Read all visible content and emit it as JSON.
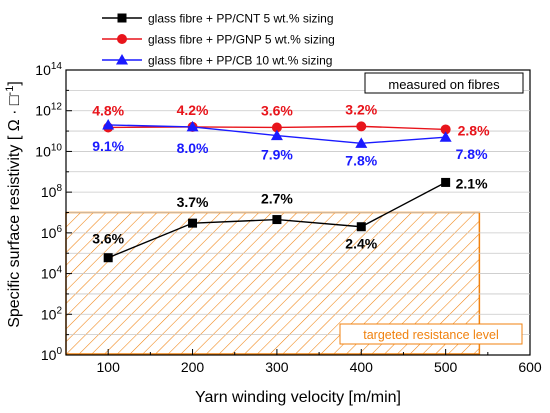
{
  "chart_data": {
    "type": "line",
    "x_axis": {
      "label": "Yarn winding velocity [m/min]",
      "range": [
        50,
        600
      ],
      "ticks": [
        100,
        200,
        300,
        400,
        500,
        600
      ]
    },
    "y_axis": {
      "label": "Specific surface resistivity [ Ω · □⁻¹]",
      "scale": "log",
      "range_exp": [
        0,
        14
      ],
      "ticks_exp": [
        0,
        2,
        4,
        6,
        8,
        10,
        12,
        14
      ]
    },
    "series": [
      {
        "name": "glass fibre + PP/CNT 5 wt.% sizing",
        "color": "#000000",
        "marker": "square",
        "x": [
          100,
          200,
          300,
          400,
          500
        ],
        "y": [
          60000,
          3000000,
          4500000,
          2000000,
          300000000
        ],
        "labels": [
          "3.6%",
          "3.7%",
          "2.7%",
          "2.4%",
          "2.1%"
        ]
      },
      {
        "name": "glass fibre + PP/GNP 5 wt.% sizing",
        "color": "#e8141b",
        "marker": "circle",
        "x": [
          100,
          200,
          300,
          400,
          500
        ],
        "y": [
          150000000000,
          160000000000,
          150000000000,
          170000000000,
          120000000000
        ],
        "labels": [
          "4.8%",
          "4.2%",
          "3.6%",
          "3.2%",
          "2.8%"
        ]
      },
      {
        "name": "glass fibre + PP/CB 10 wt.% sizing",
        "color": "#1a1aff",
        "marker": "triangle",
        "x": [
          100,
          200,
          300,
          400,
          500
        ],
        "y": [
          200000000000,
          160000000000,
          60000000000,
          25000000000,
          50000000000
        ],
        "labels": [
          "9.1%",
          "8.0%",
          "7.9%",
          "7.8%",
          "7.8%"
        ]
      }
    ],
    "annotations": {
      "measured_box": "measured on fibres",
      "target_label": "targeted resistance level"
    },
    "target_region": {
      "y_top": 10000000,
      "y_bottom": 1,
      "x_start": 50,
      "x_end": 540,
      "color": "#f0820f"
    },
    "legend_placement": "top"
  }
}
